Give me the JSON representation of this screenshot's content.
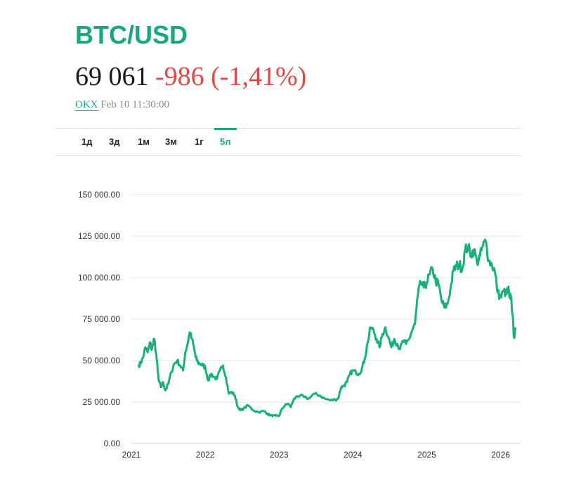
{
  "title": "BTC/USD",
  "price": "69 061",
  "change": "-986 (-1,41%)",
  "source": {
    "exchange": "OKX",
    "timestamp": "Feb 10 11:30:00"
  },
  "tabs": [
    {
      "label": "1д",
      "active": false
    },
    {
      "label": "3д",
      "active": false
    },
    {
      "label": "1м",
      "active": false
    },
    {
      "label": "3м",
      "active": false
    },
    {
      "label": "1г",
      "active": false
    },
    {
      "label": "5л",
      "active": true
    }
  ],
  "colors": {
    "accent": "#1aa67e",
    "negative": "#e34646",
    "line": "#19b07e"
  },
  "chart_data": {
    "type": "line",
    "title": "",
    "xlabel": "",
    "ylabel": "",
    "x_ticks": [
      "2021",
      "2022",
      "2023",
      "2024",
      "2025",
      "2026"
    ],
    "y_ticks": [
      "0.00",
      "25 000.00",
      "50 000.00",
      "75 000.00",
      "100 000.00",
      "125 000.00",
      "150 000.00"
    ],
    "ylim": [
      0,
      150000
    ],
    "xlim": [
      2021.0,
      2026.27
    ],
    "grid": true,
    "series": [
      {
        "x": [
          2021.1,
          2021.13,
          2021.16,
          2021.19,
          2021.22,
          2021.25,
          2021.28,
          2021.31,
          2021.34,
          2021.37,
          2021.4,
          2021.43,
          2021.46,
          2021.5,
          2021.54,
          2021.58,
          2021.62,
          2021.66,
          2021.7,
          2021.73,
          2021.76,
          2021.79,
          2021.82,
          2021.85,
          2021.87,
          2021.9,
          2021.93,
          2021.97,
          2022.0,
          2022.04,
          2022.08,
          2022.12,
          2022.16,
          2022.2,
          2022.24,
          2022.28,
          2022.32,
          2022.36,
          2022.4,
          2022.44,
          2022.48,
          2022.52,
          2022.58,
          2022.65,
          2022.72,
          2022.8,
          2022.84,
          2022.88,
          2022.92,
          2022.96,
          2023.0,
          2023.04,
          2023.08,
          2023.12,
          2023.16,
          2023.2,
          2023.26,
          2023.32,
          2023.4,
          2023.48,
          2023.55,
          2023.62,
          2023.7,
          2023.76,
          2023.8,
          2023.84,
          2023.88,
          2023.92,
          2023.96,
          2024.0,
          2024.04,
          2024.08,
          2024.12,
          2024.16,
          2024.2,
          2024.24,
          2024.28,
          2024.32,
          2024.36,
          2024.4,
          2024.44,
          2024.48,
          2024.52,
          2024.56,
          2024.6,
          2024.64,
          2024.68,
          2024.72,
          2024.76,
          2024.8,
          2024.84,
          2024.88,
          2024.92,
          2024.96,
          2025.0,
          2025.04,
          2025.08,
          2025.12,
          2025.16,
          2025.2,
          2025.24,
          2025.28,
          2025.32,
          2025.36,
          2025.4,
          2025.44,
          2025.48,
          2025.52,
          2025.56,
          2025.6,
          2025.64,
          2025.68,
          2025.72,
          2025.76,
          2025.8,
          2025.84,
          2025.88,
          2025.92,
          2025.96,
          2026.0,
          2026.04,
          2026.08,
          2026.1,
          2026.12,
          2026.14,
          2026.16,
          2026.18,
          2026.2
        ],
        "values": [
          47000,
          49000,
          52000,
          58000,
          55000,
          61000,
          57000,
          63000,
          52000,
          38000,
          34000,
          37000,
          32000,
          36000,
          43000,
          48000,
          50000,
          47000,
          44000,
          55000,
          60000,
          67000,
          63000,
          57000,
          52000,
          49000,
          48000,
          47000,
          46000,
          38000,
          42000,
          40000,
          39000,
          44000,
          47000,
          40000,
          30000,
          31000,
          29000,
          22000,
          20000,
          21000,
          23000,
          20000,
          19000,
          19500,
          18000,
          17000,
          16800,
          16700,
          16600,
          21000,
          23000,
          24000,
          22000,
          27000,
          28000,
          29000,
          27000,
          30000,
          29000,
          27000,
          26000,
          26500,
          27000,
          34000,
          35000,
          37000,
          42000,
          44000,
          43000,
          42000,
          45000,
          51000,
          61000,
          70000,
          68000,
          63000,
          58000,
          66000,
          70000,
          64000,
          58000,
          63000,
          60000,
          57000,
          62000,
          60000,
          63000,
          68000,
          72000,
          90000,
          97000,
          94000,
          97000,
          102000,
          105000,
          98000,
          96000,
          86000,
          82000,
          84000,
          93000,
          104000,
          107000,
          108000,
          105000,
          117000,
          118000,
          114000,
          117000,
          109000,
          113000,
          119000,
          122000,
          110000,
          108000,
          104000,
          91000,
          88000,
          92000,
          90000,
          94000,
          88000,
          89000,
          78000,
          64000,
          69000
        ]
      }
    ]
  }
}
